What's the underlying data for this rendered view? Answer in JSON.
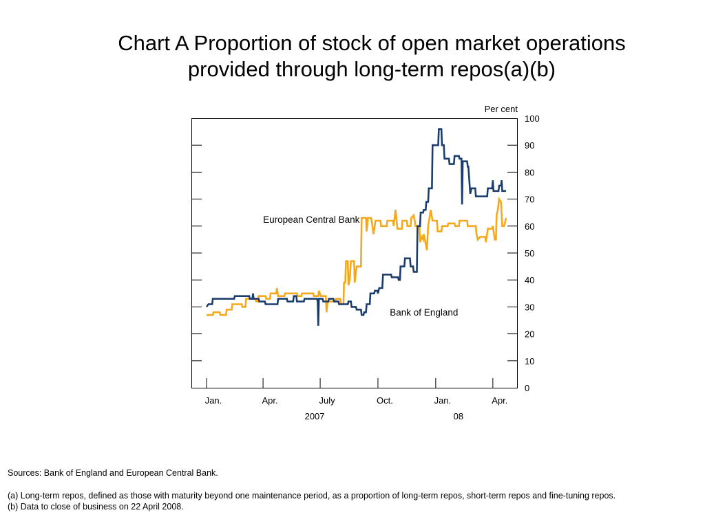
{
  "title_line1": "Chart A  Proportion of stock of open market operations",
  "title_line2": "provided through long-term repos(a)(b)",
  "notes": {
    "sources": "Sources:  Bank of England and European Central Bank.",
    "note_a": "(a)  Long-term repos, defined as those with maturity beyond one maintenance period, as a proportion of long-term repos, short-term repos and fine-tuning repos.",
    "note_b": "(b)  Data to close of business on 22 April 2008."
  },
  "chart_data": {
    "type": "line",
    "ylabel": "Per cent",
    "ylim": [
      0,
      100
    ],
    "yticks": [
      0,
      10,
      20,
      30,
      40,
      50,
      60,
      70,
      80,
      90,
      100
    ],
    "xlim": [
      "2007-01-01",
      "2008-05-02"
    ],
    "xticks": [
      {
        "date": "2007-01-01",
        "label": "Jan."
      },
      {
        "date": "2007-04-01",
        "label": "Apr."
      },
      {
        "date": "2007-07-01",
        "label": "July"
      },
      {
        "date": "2007-10-01",
        "label": "Oct."
      },
      {
        "date": "2008-01-01",
        "label": "Jan."
      },
      {
        "date": "2008-04-01",
        "label": "Apr."
      }
    ],
    "year_labels": [
      {
        "date": "2007-07-01",
        "label": "2007"
      },
      {
        "date": "2008-02-15",
        "label": "08"
      }
    ],
    "grid": false,
    "series": [
      {
        "name": "European Central Bank",
        "color": "#f5a81c",
        "points": [
          [
            "2007-01-01",
            27
          ],
          [
            "2007-01-11",
            27
          ],
          [
            "2007-01-12",
            28
          ],
          [
            "2007-01-22",
            28
          ],
          [
            "2007-01-23",
            27
          ],
          [
            "2007-02-01",
            27
          ],
          [
            "2007-02-02",
            29
          ],
          [
            "2007-02-10",
            29
          ],
          [
            "2007-02-11",
            31
          ],
          [
            "2007-02-26",
            31
          ],
          [
            "2007-02-27",
            30
          ],
          [
            "2007-03-04",
            30
          ],
          [
            "2007-03-05",
            33
          ],
          [
            "2007-03-20",
            33
          ],
          [
            "2007-03-21",
            32
          ],
          [
            "2007-03-24",
            32
          ],
          [
            "2007-03-25",
            34
          ],
          [
            "2007-04-05",
            34
          ],
          [
            "2007-04-06",
            33
          ],
          [
            "2007-04-12",
            33
          ],
          [
            "2007-04-13",
            35
          ],
          [
            "2007-04-22",
            35
          ],
          [
            "2007-04-23",
            37
          ],
          [
            "2007-04-25",
            34
          ],
          [
            "2007-05-05",
            34
          ],
          [
            "2007-05-06",
            35
          ],
          [
            "2007-05-25",
            35
          ],
          [
            "2007-05-26",
            34
          ],
          [
            "2007-06-01",
            34
          ],
          [
            "2007-06-02",
            35
          ],
          [
            "2007-06-20",
            35
          ],
          [
            "2007-06-21",
            34
          ],
          [
            "2007-06-28",
            34
          ],
          [
            "2007-06-29",
            36
          ],
          [
            "2007-07-02",
            34
          ],
          [
            "2007-07-10",
            34
          ],
          [
            "2007-07-11",
            28
          ],
          [
            "2007-07-13",
            32
          ],
          [
            "2007-07-25",
            32
          ],
          [
            "2007-07-26",
            33
          ],
          [
            "2007-08-02",
            33
          ],
          [
            "2007-08-03",
            31
          ],
          [
            "2007-08-07",
            31
          ],
          [
            "2007-08-08",
            39
          ],
          [
            "2007-08-10",
            39
          ],
          [
            "2007-08-11",
            47
          ],
          [
            "2007-08-14",
            47
          ],
          [
            "2007-08-15",
            38
          ],
          [
            "2007-08-17",
            40
          ],
          [
            "2007-08-19",
            47
          ],
          [
            "2007-08-24",
            47
          ],
          [
            "2007-08-25",
            39
          ],
          [
            "2007-08-28",
            45
          ],
          [
            "2007-09-04",
            45
          ],
          [
            "2007-09-05",
            63
          ],
          [
            "2007-09-12",
            63
          ],
          [
            "2007-09-13",
            58
          ],
          [
            "2007-09-15",
            63
          ],
          [
            "2007-09-20",
            63
          ],
          [
            "2007-09-21",
            62
          ],
          [
            "2007-09-24",
            57
          ],
          [
            "2007-09-27",
            62
          ],
          [
            "2007-10-05",
            62
          ],
          [
            "2007-10-06",
            60
          ],
          [
            "2007-10-15",
            60
          ],
          [
            "2007-10-16",
            62
          ],
          [
            "2007-10-25",
            62
          ],
          [
            "2007-10-26",
            60
          ],
          [
            "2007-10-29",
            66
          ],
          [
            "2007-11-01",
            59
          ],
          [
            "2007-11-08",
            59
          ],
          [
            "2007-11-09",
            62
          ],
          [
            "2007-11-16",
            62
          ],
          [
            "2007-11-17",
            60
          ],
          [
            "2007-11-22",
            60
          ],
          [
            "2007-11-23",
            63
          ],
          [
            "2007-11-27",
            64
          ],
          [
            "2007-11-30",
            60
          ],
          [
            "2007-12-06",
            60
          ],
          [
            "2007-12-07",
            54
          ],
          [
            "2007-12-10",
            56
          ],
          [
            "2007-12-12",
            55
          ],
          [
            "2007-12-13",
            57
          ],
          [
            "2007-12-18",
            51
          ],
          [
            "2007-12-20",
            60
          ],
          [
            "2007-12-24",
            66
          ],
          [
            "2007-12-27",
            62
          ],
          [
            "2008-01-03",
            62
          ],
          [
            "2008-01-04",
            58
          ],
          [
            "2008-01-10",
            58
          ],
          [
            "2008-01-11",
            60
          ],
          [
            "2008-01-20",
            60
          ],
          [
            "2008-01-21",
            61
          ],
          [
            "2008-01-31",
            61
          ],
          [
            "2008-02-01",
            60
          ],
          [
            "2008-02-07",
            60
          ],
          [
            "2008-02-08",
            62
          ],
          [
            "2008-02-20",
            62
          ],
          [
            "2008-02-21",
            60
          ],
          [
            "2008-03-05",
            60
          ],
          [
            "2008-03-06",
            57
          ],
          [
            "2008-03-08",
            55
          ],
          [
            "2008-03-12",
            56
          ],
          [
            "2008-03-20",
            56
          ],
          [
            "2008-03-21",
            54
          ],
          [
            "2008-03-24",
            59
          ],
          [
            "2008-03-31",
            59
          ],
          [
            "2008-04-01",
            60
          ],
          [
            "2008-04-04",
            55
          ],
          [
            "2008-04-06",
            55
          ],
          [
            "2008-04-07",
            64
          ],
          [
            "2008-04-09",
            66
          ],
          [
            "2008-04-11",
            70
          ],
          [
            "2008-04-14",
            69
          ],
          [
            "2008-04-16",
            60
          ],
          [
            "2008-04-19",
            60
          ],
          [
            "2008-04-21",
            62
          ],
          [
            "2008-04-22",
            63
          ]
        ]
      },
      {
        "name": "Bank of England",
        "color": "#1b3d6e",
        "points": [
          [
            "2007-01-01",
            30
          ],
          [
            "2007-01-04",
            31
          ],
          [
            "2007-01-10",
            31
          ],
          [
            "2007-01-11",
            33
          ],
          [
            "2007-02-14",
            33
          ],
          [
            "2007-02-15",
            34
          ],
          [
            "2007-03-10",
            34
          ],
          [
            "2007-03-11",
            33
          ],
          [
            "2007-03-15",
            33
          ],
          [
            "2007-03-16",
            35
          ],
          [
            "2007-03-17",
            33
          ],
          [
            "2007-03-25",
            33
          ],
          [
            "2007-03-26",
            32
          ],
          [
            "2007-04-04",
            32
          ],
          [
            "2007-04-05",
            31
          ],
          [
            "2007-04-24",
            31
          ],
          [
            "2007-04-25",
            33
          ],
          [
            "2007-05-09",
            33
          ],
          [
            "2007-05-10",
            32
          ],
          [
            "2007-05-19",
            32
          ],
          [
            "2007-05-20",
            34
          ],
          [
            "2007-05-24",
            34
          ],
          [
            "2007-05-25",
            32
          ],
          [
            "2007-06-05",
            32
          ],
          [
            "2007-06-06",
            33
          ],
          [
            "2007-06-26",
            33
          ],
          [
            "2007-06-27",
            32
          ],
          [
            "2007-06-28",
            23
          ],
          [
            "2007-06-29",
            33
          ],
          [
            "2007-07-05",
            33
          ],
          [
            "2007-07-06",
            32
          ],
          [
            "2007-07-14",
            32
          ],
          [
            "2007-07-15",
            33
          ],
          [
            "2007-07-22",
            33
          ],
          [
            "2007-07-23",
            32
          ],
          [
            "2007-07-30",
            32
          ],
          [
            "2007-07-31",
            31
          ],
          [
            "2007-08-14",
            31
          ],
          [
            "2007-08-15",
            32
          ],
          [
            "2007-08-19",
            32
          ],
          [
            "2007-08-20",
            30
          ],
          [
            "2007-08-27",
            30
          ],
          [
            "2007-08-28",
            29
          ],
          [
            "2007-09-04",
            29
          ],
          [
            "2007-09-05",
            27
          ],
          [
            "2007-09-08",
            27
          ],
          [
            "2007-09-09",
            28
          ],
          [
            "2007-09-12",
            28
          ],
          [
            "2007-09-13",
            31
          ],
          [
            "2007-09-18",
            31
          ],
          [
            "2007-09-19",
            35
          ],
          [
            "2007-09-25",
            35
          ],
          [
            "2007-09-26",
            36
          ],
          [
            "2007-09-30",
            36
          ],
          [
            "2007-10-01",
            35
          ],
          [
            "2007-10-03",
            37
          ],
          [
            "2007-10-08",
            37
          ],
          [
            "2007-10-09",
            42
          ],
          [
            "2007-10-22",
            42
          ],
          [
            "2007-10-23",
            41
          ],
          [
            "2007-11-02",
            41
          ],
          [
            "2007-11-03",
            40
          ],
          [
            "2007-11-05",
            40
          ],
          [
            "2007-11-06",
            45
          ],
          [
            "2007-11-12",
            45
          ],
          [
            "2007-11-13",
            48
          ],
          [
            "2007-11-21",
            48
          ],
          [
            "2007-11-22",
            45
          ],
          [
            "2007-11-26",
            45
          ],
          [
            "2007-11-27",
            43
          ],
          [
            "2007-12-02",
            43
          ],
          [
            "2007-12-03",
            60
          ],
          [
            "2007-12-07",
            60
          ],
          [
            "2007-12-08",
            65
          ],
          [
            "2007-12-12",
            65
          ],
          [
            "2007-12-13",
            66
          ],
          [
            "2007-12-16",
            66
          ],
          [
            "2007-12-17",
            69
          ],
          [
            "2007-12-20",
            69
          ],
          [
            "2007-12-21",
            74
          ],
          [
            "2007-12-26",
            74
          ],
          [
            "2007-12-27",
            90
          ],
          [
            "2008-01-05",
            90
          ],
          [
            "2008-01-06",
            96
          ],
          [
            "2008-01-10",
            96
          ],
          [
            "2008-01-11",
            90
          ],
          [
            "2008-01-14",
            90
          ],
          [
            "2008-01-15",
            85
          ],
          [
            "2008-01-22",
            85
          ],
          [
            "2008-01-23",
            83
          ],
          [
            "2008-01-30",
            83
          ],
          [
            "2008-01-31",
            86
          ],
          [
            "2008-02-07",
            86
          ],
          [
            "2008-02-08",
            85
          ],
          [
            "2008-02-11",
            85
          ],
          [
            "2008-02-12",
            68
          ],
          [
            "2008-02-13",
            84
          ],
          [
            "2008-02-20",
            84
          ],
          [
            "2008-02-21",
            82
          ],
          [
            "2008-02-22",
            82
          ],
          [
            "2008-02-25",
            72
          ],
          [
            "2008-02-27",
            74
          ],
          [
            "2008-03-04",
            74
          ],
          [
            "2008-03-05",
            71
          ],
          [
            "2008-03-23",
            71
          ],
          [
            "2008-03-24",
            74
          ],
          [
            "2008-03-31",
            74
          ],
          [
            "2008-04-01",
            77
          ],
          [
            "2008-04-02",
            73
          ],
          [
            "2008-04-10",
            73
          ],
          [
            "2008-04-11",
            75
          ],
          [
            "2008-04-14",
            75
          ],
          [
            "2008-04-15",
            77
          ],
          [
            "2008-04-16",
            73
          ],
          [
            "2008-04-22",
            73
          ]
        ]
      }
    ],
    "annotations": [
      {
        "series": "European Central Bank",
        "text": "European Central Bank",
        "at": [
          "2007-04-01",
          62.5
        ]
      },
      {
        "series": "Bank of England",
        "text": "Bank of England",
        "at": [
          "2007-10-20",
          28
        ]
      }
    ]
  }
}
